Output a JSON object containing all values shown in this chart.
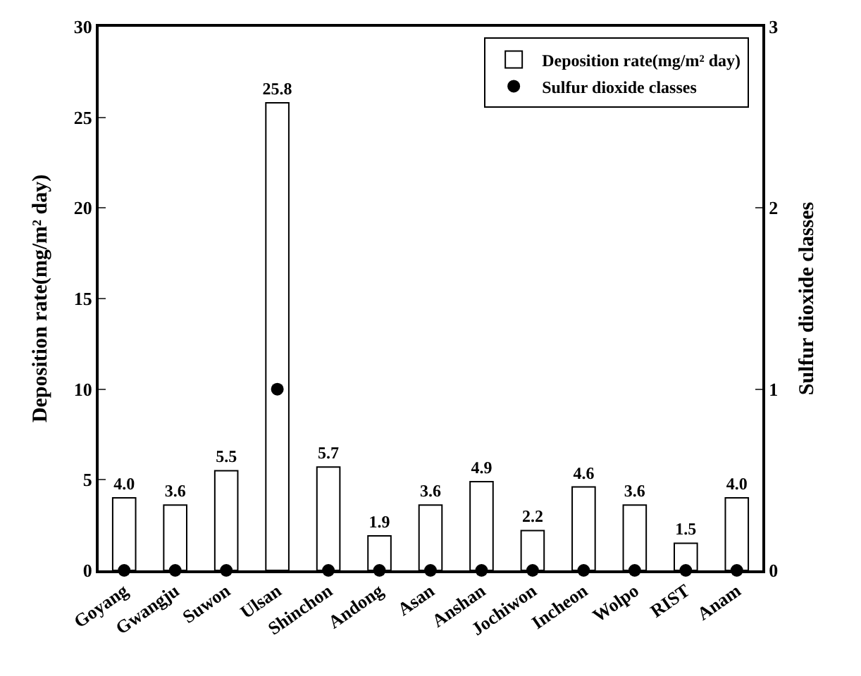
{
  "chart_data": {
    "type": "bar",
    "categories": [
      "Goyang",
      "Gwangju",
      "Suwon",
      "Ulsan",
      "Shinchon",
      "Andong",
      "Asan",
      "Anshan",
      "Jochiwon",
      "Incheon",
      "Wolpo",
      "RIST",
      "Anam"
    ],
    "ylabel": "Deposition rate(mg/m² day)",
    "y2label": "Sulfur dioxide classes",
    "ylim": [
      0,
      30
    ],
    "yticks": [
      0,
      5,
      10,
      15,
      20,
      25,
      30
    ],
    "y2lim": [
      0,
      3
    ],
    "y2ticks": [
      0,
      1,
      2,
      3
    ],
    "legend": "top right",
    "series": [
      {
        "name": "Deposition rate(mg/m² day)",
        "color": "#ffffff",
        "values": [
          4.0,
          3.6,
          5.5,
          25.8,
          5.7,
          1.9,
          3.6,
          4.9,
          2.2,
          4.6,
          3.6,
          1.5,
          4.0
        ],
        "value_labels": [
          "4.0",
          "3.6",
          "5.5",
          "25.8",
          "5.7",
          "1.9",
          "3.6",
          "4.9",
          "2.2",
          "4.6",
          "3.6",
          "1.5",
          "4.0"
        ]
      },
      {
        "name": "Sulfur dioxide classes",
        "type": "scatter",
        "axis": "y2",
        "marker": "circle",
        "color": "#000000",
        "values": [
          0,
          0,
          0,
          1,
          0,
          0,
          0,
          0,
          0,
          0,
          0,
          0,
          0
        ]
      }
    ]
  }
}
